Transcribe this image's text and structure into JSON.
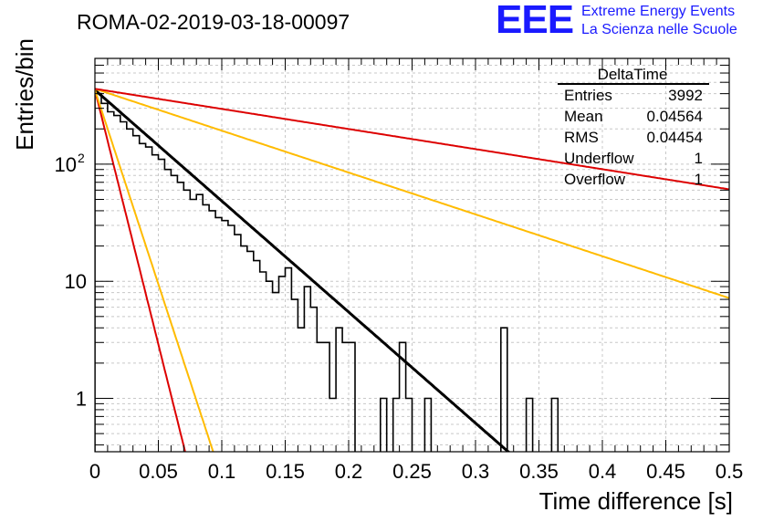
{
  "header": {
    "run_title": "ROMA-02-2019-03-18-00097",
    "logo_text": "EEE",
    "logo_line1": "Extreme Energy Events",
    "logo_line2": "La Scienza nelle Scuole"
  },
  "stats_box": {
    "title": "DeltaTime",
    "rows": [
      {
        "label": "Entries",
        "value": "3992"
      },
      {
        "label": "Mean",
        "value": "0.04564"
      },
      {
        "label": "RMS",
        "value": "0.04454"
      },
      {
        "label": "Underflow",
        "value": "1"
      },
      {
        "label": "Overflow",
        "value": "1"
      }
    ]
  },
  "chart_data": {
    "type": "histogram",
    "title": "ROMA-02-2019-03-18-00097",
    "xlabel": "Time difference [s]",
    "ylabel": "Entries/bin",
    "yscale": "log",
    "xlim": [
      0,
      0.5
    ],
    "ylim": [
      0.35,
      800
    ],
    "x_ticks": [
      "0",
      "0.05",
      "0.1",
      "0.15",
      "0.2",
      "0.25",
      "0.3",
      "0.35",
      "0.4",
      "0.45",
      "0.5"
    ],
    "y_ticks": [
      {
        "value": 1,
        "label": "1"
      },
      {
        "value": 10,
        "label": "10"
      },
      {
        "value": 100,
        "label": "10",
        "exponent": "2"
      }
    ],
    "grid": true,
    "bin_width": 0.005,
    "bin_values": [
      400,
      330,
      280,
      260,
      230,
      200,
      175,
      150,
      140,
      120,
      110,
      90,
      80,
      70,
      60,
      50,
      55,
      45,
      40,
      35,
      33,
      30,
      25,
      20,
      18,
      15,
      12,
      10,
      8,
      11,
      13,
      7,
      4,
      9,
      6,
      3,
      3,
      1,
      4,
      3,
      3,
      0,
      0,
      0,
      0,
      1,
      0,
      1,
      3,
      1,
      0,
      0,
      1,
      0,
      0,
      0,
      0,
      0,
      0,
      0,
      0,
      0,
      0,
      0,
      4,
      0,
      0,
      0,
      1,
      0,
      0,
      0,
      1,
      0
    ],
    "bin_values_note": "bins 0.000-0.370 s",
    "fits": [
      {
        "name": "exponential fit",
        "color": "#000000",
        "A": 430,
        "tau": 0.0458
      },
      {
        "name": "red steep",
        "color": "#dd0000",
        "A": 430,
        "tau": 0.01
      },
      {
        "name": "yellow steep",
        "color": "#ffbb00",
        "A": 430,
        "tau": 0.0131
      },
      {
        "name": "yellow shallow",
        "color": "#ffbb00",
        "A": 440,
        "tau": 0.1215
      },
      {
        "name": "red shallow",
        "color": "#dd0000",
        "A": 440,
        "tau": 0.253
      }
    ]
  }
}
